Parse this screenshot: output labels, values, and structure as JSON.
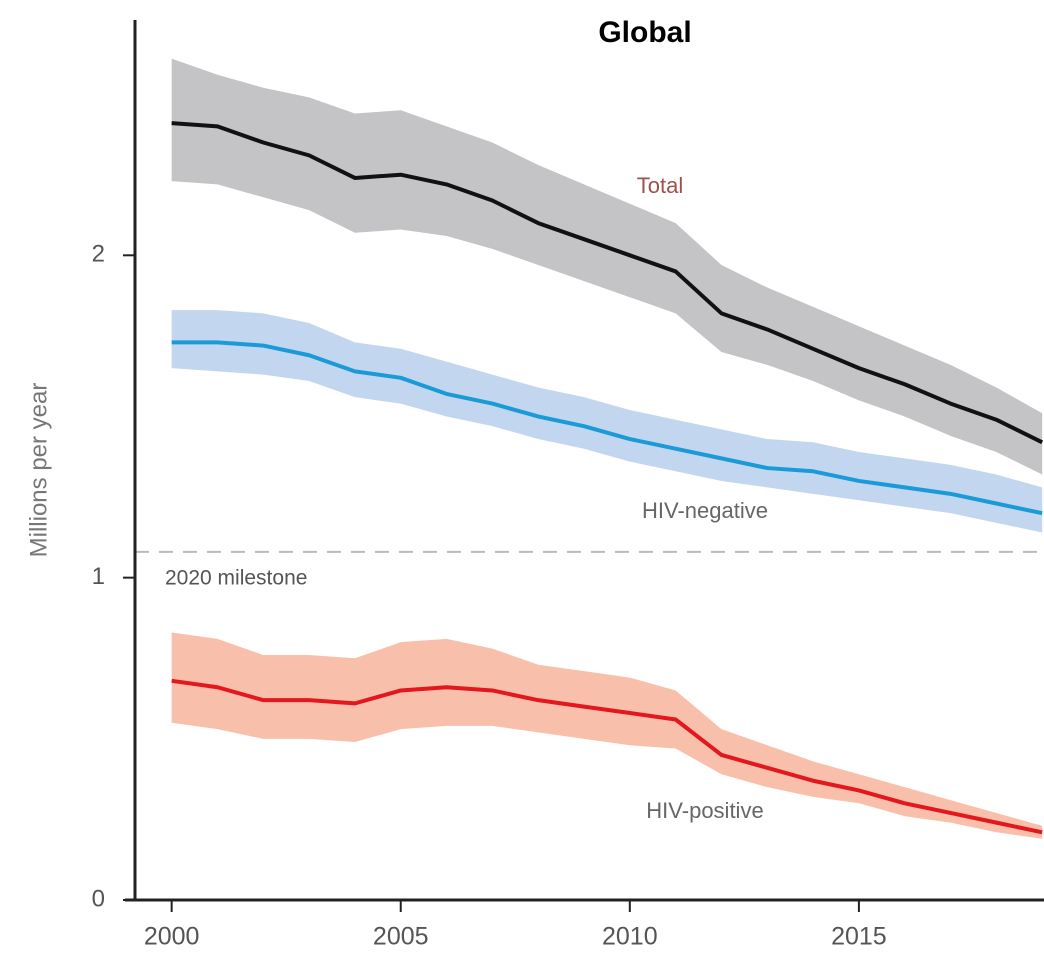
{
  "chart_data": {
    "type": "line",
    "title": "Global",
    "y_label": "Millions per year",
    "x": [
      2000,
      2001,
      2002,
      2003,
      2004,
      2005,
      2006,
      2007,
      2008,
      2009,
      2010,
      2011,
      2012,
      2013,
      2014,
      2015,
      2016,
      2017,
      2018,
      2019
    ],
    "xlim": [
      1999.2,
      2019.04
    ],
    "xticks": [
      2000,
      2005,
      2010,
      2015
    ],
    "ylim": [
      0,
      2.73
    ],
    "yticks": [
      0,
      1,
      2
    ],
    "reference_line": {
      "value": 1.08,
      "label": "2020 milestone"
    },
    "series": [
      {
        "name": "Total",
        "color": "#111111",
        "band_color": "#c4c4c6",
        "label_color": "#a0504a",
        "values": [
          2.41,
          2.4,
          2.35,
          2.31,
          2.24,
          2.25,
          2.22,
          2.17,
          2.1,
          2.05,
          2.0,
          1.95,
          1.82,
          1.77,
          1.71,
          1.65,
          1.6,
          1.54,
          1.49,
          1.42
        ],
        "upper": [
          2.61,
          2.56,
          2.52,
          2.49,
          2.44,
          2.45,
          2.4,
          2.35,
          2.28,
          2.22,
          2.16,
          2.1,
          1.97,
          1.9,
          1.84,
          1.78,
          1.72,
          1.66,
          1.59,
          1.51
        ],
        "lower": [
          2.23,
          2.22,
          2.18,
          2.14,
          2.07,
          2.08,
          2.06,
          2.02,
          1.97,
          1.92,
          1.87,
          1.82,
          1.7,
          1.66,
          1.61,
          1.55,
          1.5,
          1.44,
          1.39,
          1.32
        ]
      },
      {
        "name": "HIV-negative",
        "color": "#1a9bd7",
        "band_color": "#c3d6f0",
        "label_color": "#666666",
        "values": [
          1.73,
          1.73,
          1.72,
          1.69,
          1.64,
          1.62,
          1.57,
          1.54,
          1.5,
          1.47,
          1.43,
          1.4,
          1.37,
          1.34,
          1.33,
          1.3,
          1.28,
          1.26,
          1.23,
          1.2
        ],
        "upper": [
          1.83,
          1.83,
          1.82,
          1.79,
          1.73,
          1.71,
          1.67,
          1.63,
          1.59,
          1.56,
          1.52,
          1.49,
          1.46,
          1.43,
          1.42,
          1.39,
          1.37,
          1.35,
          1.32,
          1.28
        ],
        "lower": [
          1.65,
          1.64,
          1.63,
          1.61,
          1.56,
          1.54,
          1.5,
          1.47,
          1.43,
          1.4,
          1.36,
          1.33,
          1.3,
          1.28,
          1.26,
          1.24,
          1.22,
          1.2,
          1.17,
          1.14
        ]
      },
      {
        "name": "HIV-positive",
        "color": "#e3171d",
        "band_color": "#f8c0aa",
        "label_color": "#666666",
        "values": [
          0.68,
          0.66,
          0.62,
          0.62,
          0.61,
          0.65,
          0.66,
          0.65,
          0.62,
          0.6,
          0.58,
          0.56,
          0.45,
          0.41,
          0.37,
          0.34,
          0.3,
          0.27,
          0.24,
          0.21
        ],
        "upper": [
          0.83,
          0.81,
          0.76,
          0.76,
          0.75,
          0.8,
          0.81,
          0.78,
          0.73,
          0.71,
          0.69,
          0.65,
          0.53,
          0.48,
          0.43,
          0.39,
          0.35,
          0.31,
          0.27,
          0.23
        ],
        "lower": [
          0.55,
          0.53,
          0.5,
          0.5,
          0.49,
          0.53,
          0.54,
          0.54,
          0.52,
          0.5,
          0.48,
          0.47,
          0.39,
          0.35,
          0.32,
          0.3,
          0.26,
          0.24,
          0.21,
          0.19
        ]
      }
    ]
  }
}
